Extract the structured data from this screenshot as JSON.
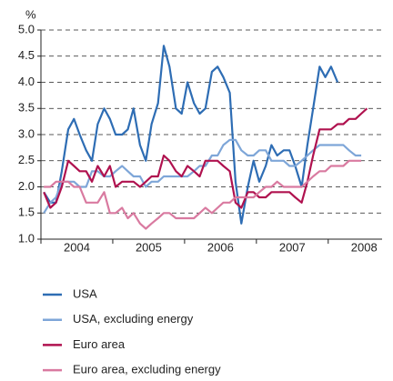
{
  "chart_data": {
    "type": "line",
    "ylabel": "%",
    "x": [
      2004.04,
      2004.13,
      2004.21,
      2004.29,
      2004.38,
      2004.46,
      2004.54,
      2004.63,
      2004.71,
      2004.79,
      2004.88,
      2004.96,
      2005.04,
      2005.13,
      2005.21,
      2005.29,
      2005.38,
      2005.46,
      2005.54,
      2005.63,
      2005.71,
      2005.79,
      2005.88,
      2005.96,
      2006.04,
      2006.13,
      2006.21,
      2006.29,
      2006.38,
      2006.46,
      2006.54,
      2006.63,
      2006.71,
      2006.79,
      2006.88,
      2006.96,
      2007.04,
      2007.13,
      2007.21,
      2007.29,
      2007.38,
      2007.46,
      2007.54,
      2007.63,
      2007.71,
      2007.79,
      2007.88,
      2007.96,
      2008.04,
      2008.13,
      2008.21,
      2008.29,
      2008.38,
      2008.46,
      2008.54
    ],
    "series": [
      {
        "name": "USA",
        "color": "#2e6db4",
        "values": [
          1.9,
          1.7,
          1.7,
          2.3,
          3.1,
          3.3,
          3.0,
          2.7,
          2.5,
          3.2,
          3.5,
          3.3,
          3.0,
          3.0,
          3.1,
          3.5,
          2.8,
          2.5,
          3.2,
          3.6,
          4.7,
          4.3,
          3.5,
          3.4,
          4.0,
          3.6,
          3.4,
          3.5,
          4.2,
          4.3,
          4.1,
          3.8,
          2.1,
          1.3,
          2.0,
          2.5,
          2.1,
          2.4,
          2.8,
          2.6,
          2.7,
          2.7,
          2.4,
          2.0,
          2.8,
          3.5,
          4.3,
          4.1,
          4.3,
          4.0,
          null,
          null,
          null,
          null,
          null
        ]
      },
      {
        "name": "USA, excluding energy",
        "color": "#7ea6d8",
        "values": [
          1.5,
          1.7,
          1.8,
          2.1,
          2.1,
          2.1,
          2.0,
          2.0,
          2.3,
          2.3,
          2.2,
          2.2,
          2.3,
          2.4,
          2.3,
          2.2,
          2.2,
          2.0,
          2.1,
          2.1,
          2.2,
          2.2,
          2.2,
          2.2,
          2.2,
          2.3,
          2.4,
          2.4,
          2.6,
          2.6,
          2.8,
          2.9,
          2.9,
          2.7,
          2.6,
          2.6,
          2.7,
          2.7,
          2.5,
          2.5,
          2.5,
          2.4,
          2.4,
          2.5,
          2.6,
          2.7,
          2.8,
          2.8,
          2.8,
          2.8,
          2.8,
          2.7,
          2.6,
          2.6,
          null
        ]
      },
      {
        "name": "Euro area",
        "color": "#b0124f",
        "values": [
          1.9,
          1.6,
          1.7,
          2.0,
          2.5,
          2.4,
          2.3,
          2.3,
          2.1,
          2.4,
          2.2,
          2.4,
          2.0,
          2.1,
          2.1,
          2.1,
          2.0,
          2.1,
          2.2,
          2.2,
          2.6,
          2.5,
          2.3,
          2.2,
          2.4,
          2.3,
          2.2,
          2.5,
          2.5,
          2.5,
          2.4,
          2.3,
          1.7,
          1.6,
          1.9,
          1.9,
          1.8,
          1.8,
          1.9,
          1.9,
          1.9,
          1.9,
          1.8,
          1.7,
          2.1,
          2.6,
          3.1,
          3.1,
          3.1,
          3.2,
          3.2,
          3.3,
          3.3,
          3.4,
          3.5
        ]
      },
      {
        "name": "Euro area, excluding energy",
        "color": "#d97aa0",
        "values": [
          2.0,
          2.0,
          2.1,
          2.1,
          2.1,
          2.0,
          2.0,
          1.7,
          1.7,
          1.7,
          1.9,
          1.5,
          1.5,
          1.6,
          1.4,
          1.5,
          1.3,
          1.2,
          1.3,
          1.4,
          1.5,
          1.5,
          1.4,
          1.4,
          1.4,
          1.4,
          1.5,
          1.6,
          1.5,
          1.6,
          1.7,
          1.7,
          1.8,
          1.8,
          1.8,
          1.8,
          1.9,
          2.0,
          2.0,
          2.1,
          2.0,
          2.0,
          2.0,
          2.0,
          2.1,
          2.2,
          2.3,
          2.3,
          2.4,
          2.4,
          2.4,
          2.5,
          2.5,
          2.5,
          null
        ]
      }
    ],
    "xlim": [
      2004,
      2008.75
    ],
    "xticks": [
      {
        "value": 2004.5,
        "label": "2004"
      },
      {
        "value": 2005.5,
        "label": "2005"
      },
      {
        "value": 2006.5,
        "label": "2006"
      },
      {
        "value": 2007.5,
        "label": "2007"
      },
      {
        "value": 2008.5,
        "label": "2008"
      }
    ],
    "ylim": [
      1.0,
      5.0
    ],
    "yticks": [
      {
        "value": 1.0,
        "label": "1.0"
      },
      {
        "value": 1.5,
        "label": "1.5"
      },
      {
        "value": 2.0,
        "label": "2.0"
      },
      {
        "value": 2.5,
        "label": "2.5"
      },
      {
        "value": 3.0,
        "label": "3.0"
      },
      {
        "value": 3.5,
        "label": "3.5"
      },
      {
        "value": 4.0,
        "label": "4.0"
      },
      {
        "value": 4.5,
        "label": "4.5"
      },
      {
        "value": 5.0,
        "label": "5.0"
      }
    ],
    "grid": true
  }
}
